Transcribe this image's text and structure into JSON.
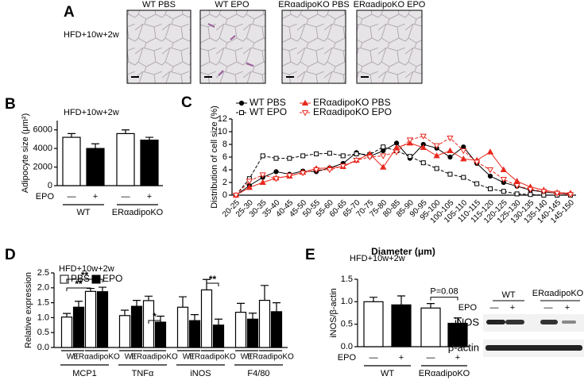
{
  "panel_labels": [
    "A",
    "B",
    "C",
    "D",
    "E"
  ],
  "panel_a": {
    "condition": "HFD+10w+2w",
    "images": [
      "WT PBS",
      "WT EPO",
      "ERαadipoKO PBS",
      "ERαadipoKO EPO"
    ]
  },
  "chart_data": [
    {
      "type": "bar",
      "title": "HFD+10w+2w",
      "ylabel": "Adipocyte size (μm²)",
      "treatment": "EPO",
      "categories": [
        "—",
        "+",
        "—",
        "+"
      ],
      "groups": [
        "WT",
        "ERαadipoKO"
      ],
      "values": [
        5200,
        4000,
        5600,
        4900
      ],
      "errors": [
        400,
        500,
        400,
        300
      ],
      "colors": [
        "#ffffff",
        "#000000",
        "#ffffff",
        "#000000"
      ],
      "ylim": [
        0,
        7000
      ],
      "yticks": [
        0,
        2000,
        4000,
        6000
      ]
    },
    {
      "type": "line",
      "ylabel": "Distribution of cell size (%)",
      "xlabel": "Diameter (μm)",
      "categories": [
        "20-25",
        "25-30",
        "30-35",
        "35-40",
        "40-45",
        "45-50",
        "50-55",
        "55-60",
        "60-65",
        "65-70",
        "70-75",
        "75-80",
        "80-85",
        "85-90",
        "90-95",
        "95-100",
        "100-105",
        "105-110",
        "110-115",
        "115-120",
        "120-125",
        "125-130",
        "130-135",
        "135-140",
        "140-145",
        "145-150"
      ],
      "ylim": [
        0,
        12
      ],
      "yticks": [
        0,
        2,
        4,
        6,
        8,
        10,
        12
      ],
      "series": [
        {
          "name": "WT PBS",
          "color": "#000000",
          "dash": false,
          "marker": "circle",
          "values": [
            0,
            1.5,
            2.8,
            3.7,
            3.3,
            3.8,
            3.7,
            4.3,
            5,
            6.7,
            6.1,
            7,
            8.2,
            5.8,
            8,
            7.4,
            6,
            7.6,
            5,
            3,
            2,
            1.4,
            0.8,
            0.5,
            0.3,
            0.2
          ]
        },
        {
          "name": "WT EPO",
          "color": "#000000",
          "dash": true,
          "marker": "square",
          "values": [
            0,
            2.6,
            6.2,
            5.8,
            5.8,
            6.2,
            6.5,
            6.6,
            6.2,
            6.5,
            6.4,
            7.6,
            7,
            6.1,
            5.1,
            4.2,
            3.3,
            2.8,
            1.8,
            1,
            0.6,
            0.2,
            0.1,
            0,
            0,
            0
          ]
        },
        {
          "name": "ERαadipoKO PBS",
          "color": "#e8281e",
          "dash": false,
          "marker": "triangle",
          "values": [
            0,
            1.2,
            2,
            2.7,
            3,
            3.6,
            4.2,
            4.3,
            4.5,
            5.5,
            6.5,
            4.4,
            7.5,
            8.2,
            7.5,
            6.2,
            7,
            5.7,
            5.5,
            6.8,
            4,
            2.2,
            1.3,
            0.8,
            0.4,
            0.3
          ]
        },
        {
          "name": "ERαadipoKO EPO",
          "color": "#e8281e",
          "dash": true,
          "marker": "itriangle",
          "values": [
            0,
            2.2,
            3.2,
            2.6,
            3.1,
            3.5,
            4,
            4,
            4.6,
            5.5,
            6,
            6.2,
            6.8,
            8.7,
            9.3,
            7.8,
            9,
            7,
            5.2,
            4,
            2.5,
            1.5,
            0.9,
            0.6,
            0.3,
            0.1
          ]
        }
      ]
    },
    {
      "type": "grouped_bar",
      "title": "HFD+10w+2w",
      "ylabel": "Relative expression",
      "categories": [
        "MCP1",
        "TNFα",
        "iNOS",
        "F4/80"
      ],
      "groups": [
        "WT",
        "ERαadipoKO"
      ],
      "series": [
        {
          "name": "PBS",
          "color": "#ffffff",
          "values": [
            [
              1.02,
              1.88
            ],
            [
              1.07,
              1.57
            ],
            [
              1.35,
              1.93
            ],
            [
              1.18,
              1.58
            ]
          ],
          "errors": [
            [
              0.12,
              0.1
            ],
            [
              0.18,
              0.15
            ],
            [
              0.35,
              0.35
            ],
            [
              0.3,
              0.5
            ]
          ]
        },
        {
          "name": "EPO",
          "color": "#000000",
          "values": [
            [
              1.35,
              1.87
            ],
            [
              1.38,
              0.85
            ],
            [
              0.9,
              0.75
            ],
            [
              0.95,
              1.2
            ]
          ],
          "errors": [
            [
              0.2,
              0.15
            ],
            [
              0.2,
              0.2
            ],
            [
              0.2,
              0.2
            ],
            [
              0.2,
              0.3
            ]
          ]
        }
      ],
      "annotations": [
        "**",
        "**",
        "*",
        "**"
      ],
      "ylim": [
        0,
        2.5
      ],
      "yticks": [
        {
          "value": 0,
          "label": "0.0"
        },
        {
          "value": 0.5,
          "label": "0.5"
        },
        {
          "value": 1,
          "label": "1.0"
        },
        {
          "value": 1.5,
          "label": "1.5"
        },
        {
          "value": 2,
          "label": "2.0"
        },
        {
          "value": 2.5,
          "label": "2.5"
        }
      ]
    },
    {
      "type": "bar",
      "title": "HFD+10w+2w",
      "ylabel": "iNOS/β-actin",
      "treatment": "EPO",
      "categories": [
        "—",
        "+",
        "—",
        "+"
      ],
      "groups": [
        "WT",
        "ERαadipoKO"
      ],
      "values": [
        1.0,
        0.93,
        0.86,
        0.52
      ],
      "errors": [
        0.1,
        0.2,
        0.1,
        0.12
      ],
      "colors": [
        "#ffffff",
        "#000000",
        "#ffffff",
        "#000000"
      ],
      "annotation": "P=0.08",
      "ylim": [
        0,
        1.5
      ],
      "yticks": [
        {
          "value": 0,
          "label": "0.0"
        },
        {
          "value": 0.5,
          "label": "0.5"
        },
        {
          "value": 1,
          "label": "1.0"
        },
        {
          "value": 1.5,
          "label": "1.5"
        }
      ]
    }
  ],
  "blot": {
    "groups": [
      "WT",
      "ERαadipoKO"
    ],
    "treatment": "EPO",
    "levels": [
      "—",
      "+",
      "—",
      "+"
    ],
    "bands": [
      "iNOS",
      "β-actin"
    ]
  }
}
